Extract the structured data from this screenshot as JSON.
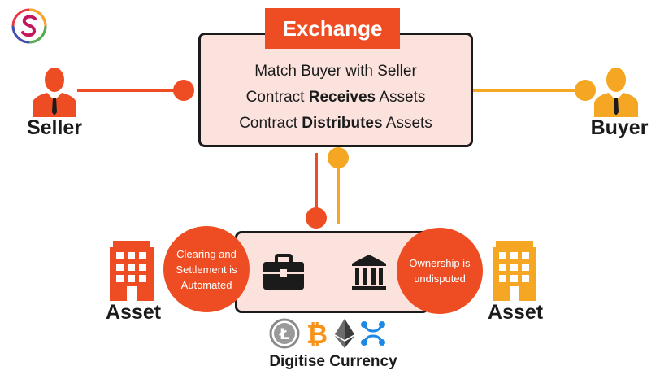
{
  "exchange": {
    "title": "Exchange",
    "line1": "Match Buyer with Seller",
    "line2_pre": "Contract ",
    "line2_bold": "Receives",
    "line2_post": " Assets",
    "line3_pre": "Contract ",
    "line3_bold": "Distributes",
    "line3_post": " Assets"
  },
  "actors": {
    "seller": "Seller",
    "buyer": "Buyer"
  },
  "assets": {
    "left": "Asset",
    "right": "Asset"
  },
  "settlement": {
    "left_circle_line1": "Clearing and",
    "left_circle_line2": "Settlement is",
    "left_circle_line3": "Automated",
    "right_circle_line1": "Ownership is",
    "right_circle_line2": "undisputed"
  },
  "currency": {
    "label": "Digitise Currency",
    "icons": [
      "litecoin-icon",
      "bitcoin-icon",
      "ethereum-icon",
      "ripple-icon"
    ],
    "litecoin_glyph": "Ł",
    "bitcoin_glyph": "₿"
  },
  "colors": {
    "seller_orange": "#ee4d23",
    "buyer_amber": "#f5a623",
    "box_fill": "#fce2dd",
    "dark": "#1b1b1b"
  }
}
